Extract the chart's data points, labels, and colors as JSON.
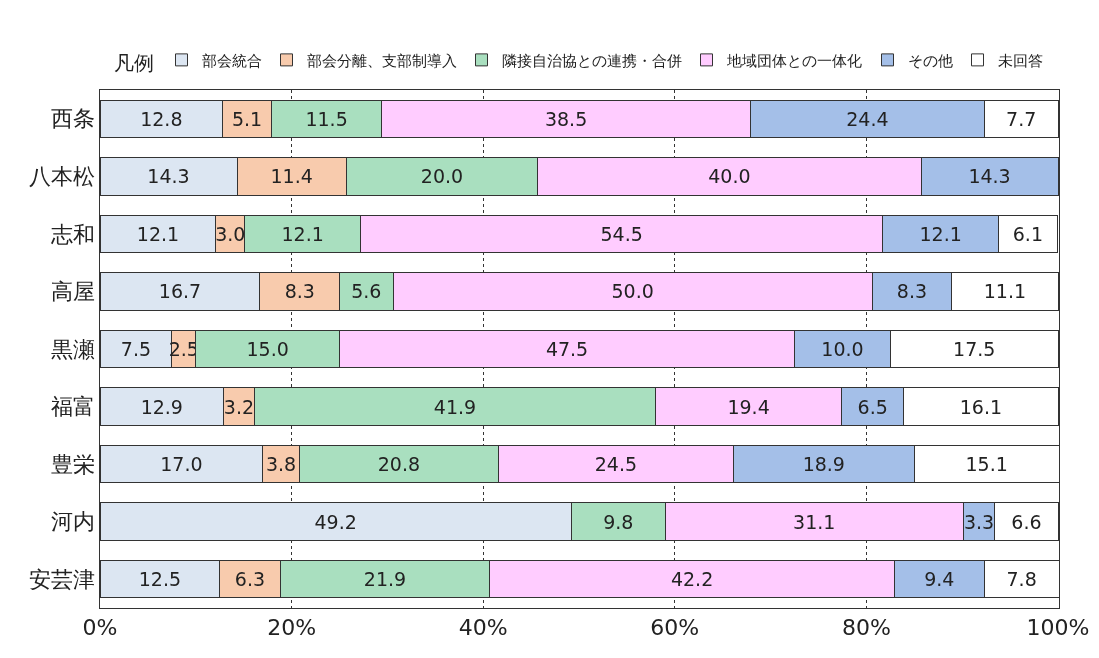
{
  "chart_data": {
    "type": "bar",
    "orientation": "horizontal",
    "stacked": true,
    "legend_title": "凡例",
    "legend": "top",
    "categories": [
      "西条",
      "八本松",
      "志和",
      "高屋",
      "黒瀬",
      "福富",
      "豊栄",
      "河内",
      "安芸津"
    ],
    "series": [
      {
        "name": "部会統合",
        "color": "#dce6f2",
        "values": [
          12.8,
          14.3,
          12.1,
          16.7,
          7.5,
          12.9,
          17.0,
          49.2,
          12.5
        ],
        "value_labels": [
          "12.8",
          "14.3",
          "12.1",
          "16.7",
          "7.5",
          "12.9",
          "17.0",
          "49.2",
          "12.5"
        ]
      },
      {
        "name": "部会分離、支部制導入",
        "color": "#f8cbad",
        "values": [
          5.1,
          11.4,
          3.0,
          8.3,
          2.5,
          3.2,
          3.8,
          null,
          6.3
        ],
        "value_labels": [
          "5.1",
          "11.4",
          "3.0",
          "8.3",
          "2.5",
          "3.2",
          "3.8",
          null,
          "6.3"
        ]
      },
      {
        "name": "隣接自治協との連携・合併",
        "color": "#a9dfbf",
        "values": [
          11.5,
          20.0,
          12.1,
          5.6,
          15.0,
          41.9,
          20.8,
          9.8,
          21.9
        ],
        "value_labels": [
          "11.5",
          "20.0",
          "12.1",
          "5.6",
          "15.0",
          "41.9",
          "20.8",
          "9.8",
          "21.9"
        ]
      },
      {
        "name": "地域団体との一体化",
        "color": "#ffccff",
        "values": [
          38.5,
          40.0,
          54.5,
          50.0,
          47.5,
          19.4,
          24.5,
          31.1,
          42.2
        ],
        "value_labels": [
          "38.5",
          "40.0",
          "54.5",
          "50.0",
          "47.5",
          "19.4",
          "24.5",
          "31.1",
          "42.2"
        ]
      },
      {
        "name": "その他",
        "color": "#a4bfe8",
        "values": [
          24.4,
          14.3,
          12.1,
          8.3,
          10.0,
          6.5,
          18.9,
          3.3,
          9.4
        ],
        "value_labels": [
          "24.4",
          "14.3",
          "12.1",
          "8.3",
          "10.0",
          "6.5",
          "18.9",
          "3.3",
          "9.4"
        ]
      },
      {
        "name": "未回答",
        "color": "#ffffff",
        "values": [
          7.7,
          null,
          6.1,
          11.1,
          17.5,
          16.1,
          15.1,
          6.6,
          7.8
        ],
        "value_labels": [
          "7.7",
          null,
          "6.1",
          "11.1",
          "17.5",
          "16.1",
          "15.1",
          "6.6",
          "7.8"
        ]
      }
    ],
    "xlim": [
      0,
      100.1
    ],
    "xticks": [
      {
        "value": 0,
        "label": "0%"
      },
      {
        "value": 20,
        "label": "20%"
      },
      {
        "value": 40,
        "label": "40%"
      },
      {
        "value": 60,
        "label": "60%"
      },
      {
        "value": 80,
        "label": "80%"
      },
      {
        "value": 100,
        "label": "100%"
      }
    ],
    "grid": "x",
    "data_labels": true
  }
}
